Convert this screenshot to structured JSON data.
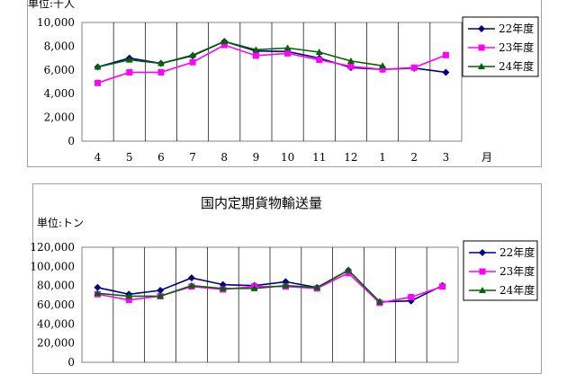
{
  "charts": [
    {
      "unit_label": "単位:千人",
      "title": "",
      "chart_data": {
        "type": "line",
        "categories": [
          "4",
          "5",
          "6",
          "7",
          "8",
          "9",
          "10",
          "11",
          "12",
          "1",
          "2",
          "3"
        ],
        "x_suffix": "月",
        "ylim": [
          0,
          10000
        ],
        "yticks": [
          "0",
          "2,000",
          "4,000",
          "6,000",
          "8,000",
          "10,000"
        ],
        "legend_position": "right",
        "series": [
          {
            "name": "22年度",
            "color": "#000080",
            "marker": "diamond",
            "values": [
              6250,
              7000,
              6550,
              7200,
              8400,
              7600,
              7550,
              7000,
              6200,
              6050,
              6150,
              5800
            ]
          },
          {
            "name": "23年度",
            "color": "#ff00ff",
            "marker": "square",
            "values": [
              4900,
              5800,
              5800,
              6650,
              8100,
              7200,
              7400,
              6850,
              6300,
              6050,
              6200,
              7250
            ]
          },
          {
            "name": "24年度",
            "color": "#006400",
            "marker": "triangle",
            "values": [
              6250,
              6850,
              6550,
              7250,
              8400,
              7700,
              7850,
              7500,
              6750,
              6350,
              null,
              null
            ]
          }
        ]
      }
    },
    {
      "unit_label": "単位:トン",
      "title": "国内定期貨物輸送量",
      "chart_data": {
        "type": "line",
        "categories": [
          "4",
          "5",
          "6",
          "7",
          "8",
          "9",
          "10",
          "11",
          "12",
          "1",
          "2",
          "3"
        ],
        "ylim": [
          0,
          120000
        ],
        "yticks": [
          "0",
          "20,000",
          "40,000",
          "60,000",
          "80,000",
          "100,000",
          "120,000"
        ],
        "legend_position": "right",
        "series": [
          {
            "name": "22年度",
            "color": "#000080",
            "marker": "diamond",
            "values": [
              78000,
              71000,
              75000,
              88000,
              81000,
              80000,
              84000,
              78000,
              96000,
              63000,
              64000,
              80000
            ]
          },
          {
            "name": "23年度",
            "color": "#ff00ff",
            "marker": "square",
            "values": [
              71000,
              65000,
              69000,
              79000,
              76000,
              79000,
              79000,
              77000,
              93000,
              62000,
              68000,
              79000
            ]
          },
          {
            "name": "24年度",
            "color": "#006400",
            "marker": "triangle",
            "values": [
              72000,
              69000,
              69000,
              80000,
              77000,
              77000,
              80000,
              78000,
              96000,
              63000,
              null,
              null
            ]
          }
        ]
      }
    }
  ]
}
